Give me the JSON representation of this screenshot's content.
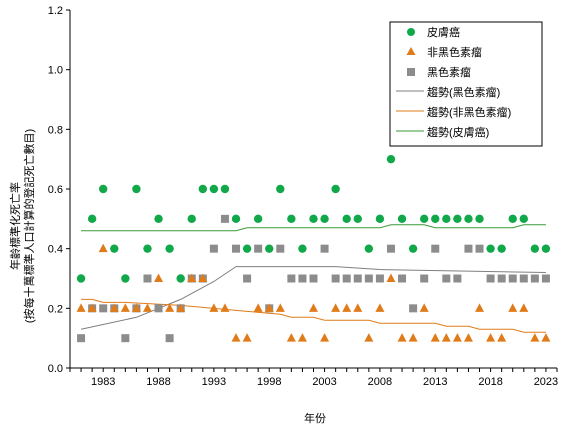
{
  "chart_data": {
    "type": "scatter",
    "title": "",
    "xlabel": "年份",
    "ylabel_lines": [
      "年齡標準化死亡率",
      "(按每十萬標準人口計算的登記死亡數目)"
    ],
    "xlim": [
      1980,
      2024
    ],
    "ylim": [
      0,
      1.2
    ],
    "yticks": [
      0,
      0.2,
      0.4,
      0.6,
      0.8,
      1.0,
      1.2
    ],
    "ytick_labels": [
      "0.0",
      "0.2",
      "0.4",
      "0.6",
      "0.8",
      "1.0",
      "1.2"
    ],
    "xticks": [
      1983,
      1988,
      1993,
      1998,
      2003,
      2008,
      2013,
      2018,
      2023
    ],
    "xtick_labels": [
      "1983",
      "1988",
      "1993",
      "1998",
      "2003",
      "2008",
      "2013",
      "2018",
      "2023"
    ],
    "legend_position": "top-right",
    "years": [
      1981,
      1982,
      1983,
      1984,
      1985,
      1986,
      1987,
      1988,
      1989,
      1990,
      1991,
      1992,
      1993,
      1994,
      1995,
      1996,
      1997,
      1998,
      1999,
      2000,
      2001,
      2002,
      2003,
      2004,
      2005,
      2006,
      2007,
      2008,
      2009,
      2010,
      2011,
      2012,
      2013,
      2014,
      2015,
      2016,
      2017,
      2018,
      2019,
      2020,
      2021,
      2022,
      2023
    ],
    "series": [
      {
        "name": "皮膚癌",
        "marker": "circle",
        "color": "#11a84a",
        "values": [
          0.3,
          0.5,
          0.6,
          0.4,
          0.3,
          0.6,
          0.4,
          0.5,
          0.4,
          0.3,
          0.5,
          0.6,
          0.6,
          0.6,
          0.5,
          0.4,
          0.5,
          0.4,
          0.6,
          0.5,
          0.4,
          0.5,
          0.5,
          0.6,
          0.5,
          0.5,
          0.4,
          0.5,
          0.7,
          0.5,
          0.4,
          0.5,
          0.5,
          0.5,
          0.5,
          0.5,
          0.5,
          0.4,
          0.4,
          0.5,
          0.5,
          0.4,
          0.4
        ]
      },
      {
        "name": "非黑色素瘤",
        "marker": "triangle",
        "color": "#e07b1a",
        "values": [
          0.2,
          0.2,
          0.4,
          0.2,
          0.2,
          0.2,
          0.2,
          0.3,
          0.2,
          0.2,
          0.3,
          0.3,
          0.2,
          0.2,
          0.1,
          0.1,
          0.2,
          0.2,
          0.2,
          0.1,
          0.1,
          0.2,
          0.1,
          0.2,
          0.2,
          0.2,
          0.1,
          0.2,
          0.3,
          0.1,
          0.1,
          0.2,
          0.1,
          0.1,
          0.1,
          0.1,
          0.2,
          0.1,
          0.1,
          0.2,
          0.2,
          0.1,
          0.1
        ]
      },
      {
        "name": "黑色素瘤",
        "marker": "square",
        "color": "#8c8c8c",
        "values": [
          0.1,
          0.2,
          0.2,
          0.2,
          0.1,
          0.2,
          0.3,
          0.2,
          0.1,
          0.2,
          0.3,
          0.3,
          0.4,
          0.5,
          0.4,
          0.3,
          0.4,
          0.2,
          0.4,
          0.3,
          0.3,
          0.3,
          0.4,
          0.3,
          0.3,
          0.3,
          0.3,
          0.3,
          0.4,
          0.3,
          0.2,
          0.3,
          0.4,
          0.3,
          0.3,
          0.4,
          0.4,
          0.3,
          0.3,
          0.3,
          0.3,
          0.3,
          0.3
        ]
      }
    ],
    "trends": [
      {
        "name": "趨勢(黑色素瘤)",
        "color": "#7f7f7f",
        "points": [
          [
            1981,
            0.13
          ],
          [
            1986,
            0.17
          ],
          [
            1990,
            0.23
          ],
          [
            1993,
            0.29
          ],
          [
            1995,
            0.34
          ],
          [
            2004,
            0.34
          ],
          [
            2008,
            0.33
          ],
          [
            2023,
            0.32
          ]
        ]
      },
      {
        "name": "趨勢(非黑色素瘤)",
        "color": "#e07b1a",
        "points": [
          [
            1981,
            0.23
          ],
          [
            1982,
            0.23
          ],
          [
            1983,
            0.22
          ],
          [
            1985,
            0.22
          ],
          [
            1990,
            0.21
          ],
          [
            1993,
            0.2
          ],
          [
            1996,
            0.19
          ],
          [
            1999,
            0.18
          ],
          [
            2000,
            0.17
          ],
          [
            2002,
            0.17
          ],
          [
            2003,
            0.16
          ],
          [
            2007,
            0.16
          ],
          [
            2008,
            0.15
          ],
          [
            2013,
            0.15
          ],
          [
            2014,
            0.14
          ],
          [
            2016,
            0.14
          ],
          [
            2017,
            0.13
          ],
          [
            2020,
            0.13
          ],
          [
            2021,
            0.12
          ],
          [
            2023,
            0.12
          ]
        ]
      },
      {
        "name": "趨勢(皮膚癌)",
        "color": "#3a9a3a",
        "points": [
          [
            1981,
            0.46
          ],
          [
            1995,
            0.46
          ],
          [
            1996,
            0.47
          ],
          [
            2008,
            0.47
          ],
          [
            2009,
            0.48
          ],
          [
            2012,
            0.48
          ],
          [
            2013,
            0.47
          ],
          [
            2020,
            0.47
          ],
          [
            2021,
            0.48
          ],
          [
            2023,
            0.48
          ]
        ]
      }
    ]
  }
}
